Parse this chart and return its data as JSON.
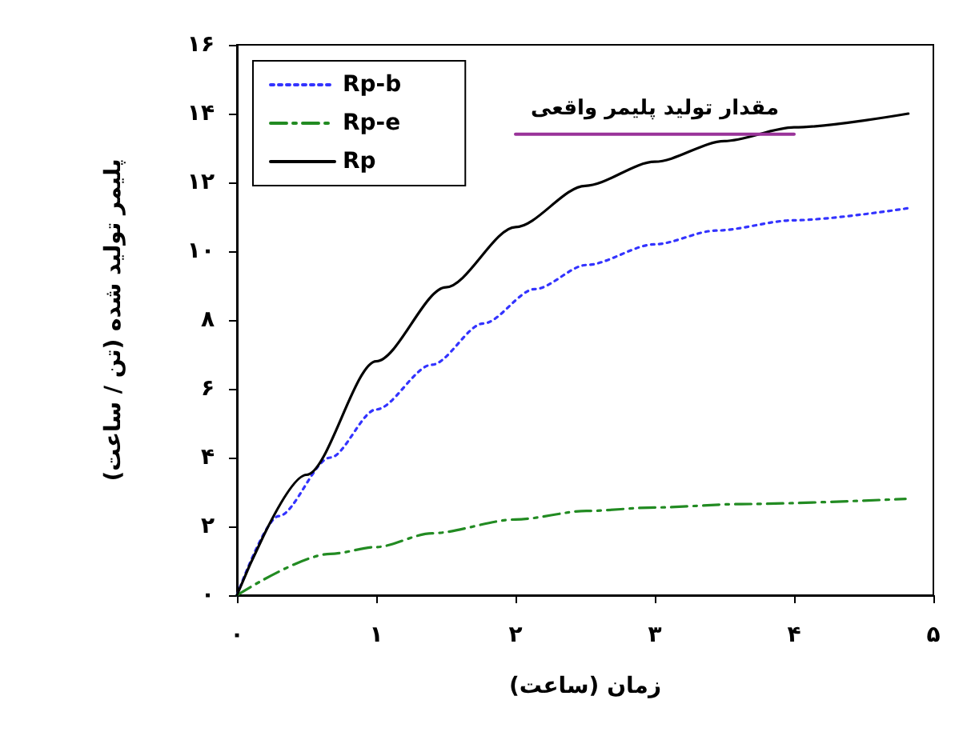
{
  "chart_data": {
    "type": "line",
    "xlabel": "زمان (ساعت)",
    "ylabel": "پلیمر تولید شده (تن / ساعت)",
    "xlim": [
      0,
      5
    ],
    "xticks": [
      {
        "value": 0,
        "label": "۰"
      },
      {
        "value": 1,
        "label": "۱"
      },
      {
        "value": 2,
        "label": "۲"
      },
      {
        "value": 3,
        "label": "۳"
      },
      {
        "value": 4,
        "label": "۴"
      },
      {
        "value": 5,
        "label": "۵"
      }
    ],
    "ylim": [
      0,
      16
    ],
    "yticks": [
      {
        "value": 0,
        "label": "۰"
      },
      {
        "value": 2,
        "label": "۲"
      },
      {
        "value": 4,
        "label": "۴"
      },
      {
        "value": 6,
        "label": "۶"
      },
      {
        "value": 8,
        "label": "۸"
      },
      {
        "value": 10,
        "label": "۱۰"
      },
      {
        "value": 12,
        "label": "۱۲"
      },
      {
        "value": 14,
        "label": "۱۴"
      },
      {
        "value": 16,
        "label": "۱۶"
      }
    ],
    "grid": false,
    "legend": "top left",
    "marker": "none",
    "series": [
      {
        "name": "Rp-b",
        "color": "#3333ff",
        "line_style": "dotted",
        "x": [
          0,
          0.3,
          0.67,
          1,
          1.4,
          1.77,
          2.14,
          2.51,
          3,
          3.44,
          4,
          4.82
        ],
        "values": [
          0,
          2.3,
          4.0,
          5.4,
          6.7,
          7.9,
          8.9,
          9.6,
          10.2,
          10.6,
          10.9,
          11.25
        ]
      },
      {
        "name": "Rp-e",
        "color": "#228b22",
        "line_style": "dashed",
        "x": [
          0,
          0.67,
          1,
          1.4,
          2,
          2.51,
          3,
          3.62,
          4.8
        ],
        "values": [
          0,
          1.2,
          1.4,
          1.8,
          2.2,
          2.45,
          2.55,
          2.65,
          2.8
        ]
      },
      {
        "name": "Rp",
        "color": "#000000",
        "line_style": "solid",
        "x": [
          0,
          0.5,
          1,
          1.5,
          2,
          2.5,
          3,
          3.5,
          4,
          4.82
        ],
        "values": [
          0,
          3.5,
          6.8,
          8.95,
          10.7,
          11.9,
          12.6,
          13.2,
          13.6,
          14.0
        ]
      },
      {
        "color": "#993399",
        "line_style": "solid",
        "x": [
          2,
          4
        ],
        "values": [
          13.4,
          13.4
        ]
      }
    ],
    "annotations": [
      "مقدار تولید پلیمر واقعی"
    ]
  }
}
